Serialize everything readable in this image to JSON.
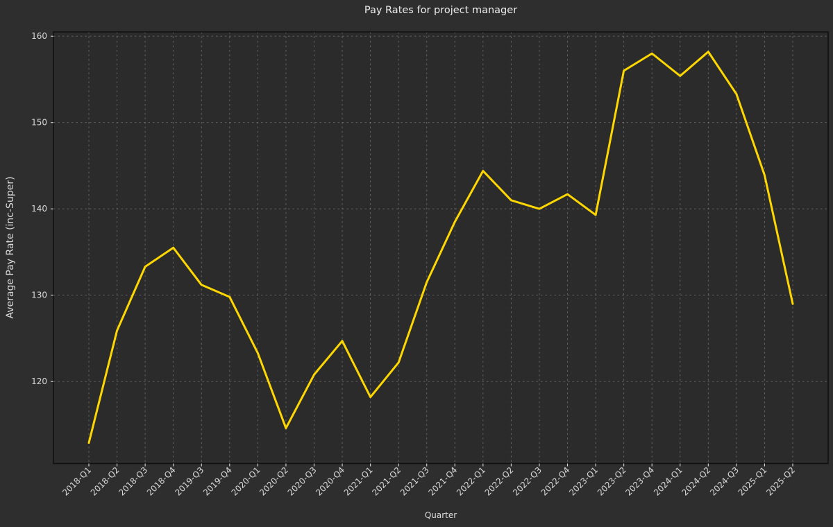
{
  "chart": {
    "title": "Pay Rates for project manager",
    "xlabel": "Quarter",
    "ylabel": "Average Pay Rate (inc-Super)"
  },
  "chart_data": {
    "type": "line",
    "title": "Pay Rates for project manager",
    "xlabel": "Quarter",
    "ylabel": "Average Pay Rate (inc-Super)",
    "categories": [
      "2018-Q1",
      "2018-Q2",
      "2018-Q3",
      "2018-Q4",
      "2019-Q3",
      "2019-Q4",
      "2020-Q1",
      "2020-Q2",
      "2020-Q3",
      "2020-Q4",
      "2021-Q1",
      "2021-Q2",
      "2021-Q3",
      "2021-Q4",
      "2022-Q1",
      "2022-Q2",
      "2022-Q3",
      "2022-Q4",
      "2023-Q1",
      "2023-Q2",
      "2023-Q4",
      "2024-Q1",
      "2024-Q2",
      "2024-Q3",
      "2025-Q1",
      "2025-Q2"
    ],
    "series": [
      {
        "name": "Average Pay Rate (inc-Super)",
        "color": "#FFD700",
        "values": [
          112.9,
          125.9,
          133.3,
          135.5,
          131.2,
          129.8,
          123.3,
          114.6,
          120.8,
          124.7,
          118.2,
          122.2,
          131.5,
          138.5,
          144.4,
          141.0,
          140.0,
          141.7,
          139.3,
          156.0,
          158.0,
          155.4,
          158.2,
          153.3,
          143.9,
          129.0
        ]
      }
    ],
    "yticks": [
      120,
      130,
      140,
      150,
      160
    ],
    "ylim": [
      110.5,
      160.5
    ],
    "grid": true,
    "legend": "none",
    "x_tick_rotation_deg": 45,
    "colors": {
      "figure_background": "#2e2e2e",
      "plot_background": "#2b2b2b",
      "line": "#FFD700",
      "gridline": "#b4b4b4",
      "spine": "#111111",
      "tick_label": "#d9d9d9",
      "title_text": "#ededed"
    }
  }
}
